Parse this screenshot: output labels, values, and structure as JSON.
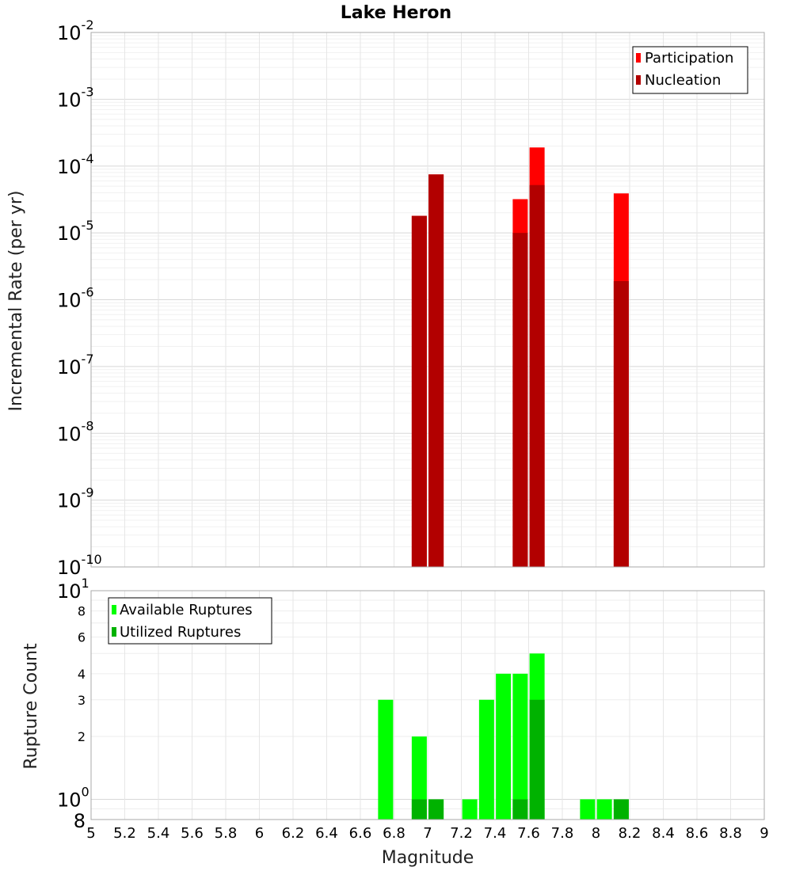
{
  "chart_data": [
    {
      "type": "bar",
      "title": "Lake Heron",
      "xlabel": "Magnitude",
      "ylabel": "Incremental Rate (per yr)",
      "yscale": "log",
      "xlim": [
        5,
        9
      ],
      "ylim": [
        1e-10,
        0.01
      ],
      "x_ticks": [
        "5",
        "5.2",
        "5.4",
        "5.6",
        "5.8",
        "6",
        "6.2",
        "6.4",
        "6.6",
        "6.8",
        "7",
        "7.2",
        "7.4",
        "7.6",
        "7.8",
        "8",
        "8.2",
        "8.4",
        "8.6",
        "8.8",
        "9"
      ],
      "y_ticks": [
        {
          "base": "10",
          "exp": "-10"
        },
        {
          "base": "10",
          "exp": "-9"
        },
        {
          "base": "10",
          "exp": "-8"
        },
        {
          "base": "10",
          "exp": "-7"
        },
        {
          "base": "10",
          "exp": "-6"
        },
        {
          "base": "10",
          "exp": "-5"
        },
        {
          "base": "10",
          "exp": "-4"
        },
        {
          "base": "10",
          "exp": "-3"
        },
        {
          "base": "10",
          "exp": "-2"
        }
      ],
      "grid": true,
      "legend_position": "top-right",
      "series": [
        {
          "name": "Participation",
          "color": "#ff0000",
          "points": [
            {
              "x": 6.95,
              "y": 1.8e-05
            },
            {
              "x": 7.05,
              "y": 7.5e-05
            },
            {
              "x": 7.55,
              "y": 3.2e-05
            },
            {
              "x": 7.65,
              "y": 0.00019
            },
            {
              "x": 8.15,
              "y": 3.9e-05
            }
          ]
        },
        {
          "name": "Nucleation",
          "color": "#b20000",
          "points": [
            {
              "x": 6.95,
              "y": 1.8e-05
            },
            {
              "x": 7.05,
              "y": 7.5e-05
            },
            {
              "x": 7.55,
              "y": 1e-05
            },
            {
              "x": 7.65,
              "y": 5.2e-05
            },
            {
              "x": 8.15,
              "y": 1.9e-06
            }
          ]
        }
      ]
    },
    {
      "type": "bar",
      "xlabel": "Magnitude",
      "ylabel": "Rupture Count",
      "yscale": "log",
      "xlim": [
        5,
        9
      ],
      "ylim": [
        0.8,
        10
      ],
      "x_ticks": [
        "5",
        "5.2",
        "5.4",
        "5.6",
        "5.8",
        "6",
        "6.2",
        "6.4",
        "6.6",
        "6.8",
        "7",
        "7.2",
        "7.4",
        "7.6",
        "7.8",
        "8",
        "8.2",
        "8.4",
        "8.6",
        "8.8",
        "9"
      ],
      "y_decade_ticks": [
        {
          "base": "10",
          "exp": "0"
        },
        {
          "base": "10",
          "exp": "1"
        }
      ],
      "y_minor_ticks": [
        "8",
        "2",
        "3",
        "4",
        "6",
        "8"
      ],
      "grid": true,
      "legend_position": "top-left",
      "series": [
        {
          "name": "Available Ruptures",
          "color": "#00ff00",
          "points": [
            {
              "x": 6.75,
              "y": 3
            },
            {
              "x": 6.95,
              "y": 2
            },
            {
              "x": 7.05,
              "y": 1
            },
            {
              "x": 7.25,
              "y": 1
            },
            {
              "x": 7.35,
              "y": 3
            },
            {
              "x": 7.45,
              "y": 4
            },
            {
              "x": 7.55,
              "y": 4
            },
            {
              "x": 7.65,
              "y": 5
            },
            {
              "x": 7.95,
              "y": 1
            },
            {
              "x": 8.05,
              "y": 1
            },
            {
              "x": 8.15,
              "y": 1
            }
          ]
        },
        {
          "name": "Utilized Ruptures",
          "color": "#00b200",
          "points": [
            {
              "x": 6.95,
              "y": 1
            },
            {
              "x": 7.05,
              "y": 1
            },
            {
              "x": 7.55,
              "y": 1
            },
            {
              "x": 7.65,
              "y": 3
            },
            {
              "x": 8.15,
              "y": 1
            }
          ]
        }
      ]
    }
  ]
}
